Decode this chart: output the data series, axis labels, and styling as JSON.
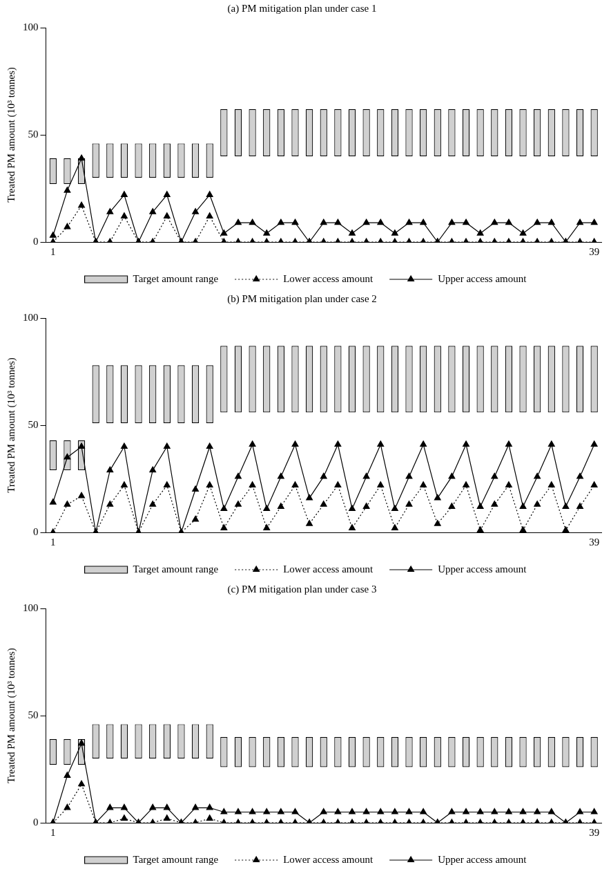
{
  "chart_data": [
    {
      "type": "bar",
      "title": "(a) PM mitigation plan under case 1",
      "ylabel": "Treated PM amount (10³ tonnes)",
      "categories": [
        "1",
        null,
        null,
        null,
        null,
        null,
        null,
        null,
        null,
        null,
        null,
        null,
        null,
        null,
        null,
        null,
        null,
        null,
        null,
        null,
        null,
        null,
        null,
        null,
        null,
        null,
        null,
        null,
        null,
        null,
        null,
        null,
        null,
        null,
        null,
        null,
        null,
        null,
        "39"
      ],
      "ylim": [
        0,
        100
      ],
      "yticks": [
        0,
        50,
        100
      ],
      "grid": false,
      "legend": "bottom",
      "series": [
        {
          "name": "Target amount range",
          "color": "#d0d0d0",
          "base": [
            27,
            27,
            27,
            30,
            30,
            30,
            30,
            30,
            30,
            30,
            30,
            30,
            40,
            40,
            40,
            40,
            40,
            40,
            40,
            40,
            40,
            40,
            40,
            40,
            40,
            40,
            40,
            40,
            40,
            40,
            40,
            40,
            40,
            40,
            40,
            40,
            40,
            40,
            40
          ],
          "values": [
            12,
            12,
            12,
            16,
            16,
            16,
            16,
            16,
            16,
            16,
            16,
            16,
            22,
            22,
            22,
            22,
            22,
            22,
            22,
            22,
            22,
            22,
            22,
            22,
            22,
            22,
            22,
            22,
            22,
            22,
            22,
            22,
            22,
            22,
            22,
            22,
            22,
            22,
            22
          ]
        },
        {
          "name": "Lower access amount",
          "type": "line",
          "color": "#000000",
          "marker": "triangle",
          "line_style": "dotted",
          "values": [
            0,
            7,
            17,
            0,
            0,
            12,
            0,
            0,
            12,
            0,
            0,
            12,
            0,
            0,
            0,
            0,
            0,
            0,
            0,
            0,
            0,
            0,
            0,
            0,
            0,
            0,
            0,
            0,
            0,
            0,
            0,
            0,
            0,
            0,
            0,
            0,
            0,
            0,
            0
          ]
        },
        {
          "name": "Upper access amount",
          "type": "line",
          "color": "#000000",
          "marker": "triangle",
          "line_style": "solid",
          "values": [
            3,
            24,
            39,
            0,
            14,
            22,
            0,
            14,
            22,
            0,
            14,
            22,
            4,
            9,
            9,
            4,
            9,
            9,
            0,
            9,
            9,
            4,
            9,
            9,
            4,
            9,
            9,
            0,
            9,
            9,
            4,
            9,
            9,
            4,
            9,
            9,
            0,
            9,
            9
          ]
        }
      ]
    },
    {
      "type": "bar",
      "title": "(b) PM mitigation plan under case 2",
      "ylabel": "Treated PM amount (10³ tonnes)",
      "categories": [
        "1",
        null,
        null,
        null,
        null,
        null,
        null,
        null,
        null,
        null,
        null,
        null,
        null,
        null,
        null,
        null,
        null,
        null,
        null,
        null,
        null,
        null,
        null,
        null,
        null,
        null,
        null,
        null,
        null,
        null,
        null,
        null,
        null,
        null,
        null,
        null,
        null,
        null,
        "39"
      ],
      "ylim": [
        0,
        100
      ],
      "yticks": [
        0,
        50,
        100
      ],
      "grid": false,
      "legend": "bottom",
      "series": [
        {
          "name": "Target amount range",
          "color": "#d0d0d0",
          "base": [
            29,
            29,
            29,
            51,
            51,
            51,
            51,
            51,
            51,
            51,
            51,
            51,
            56,
            56,
            56,
            56,
            56,
            56,
            56,
            56,
            56,
            56,
            56,
            56,
            56,
            56,
            56,
            56,
            56,
            56,
            56,
            56,
            56,
            56,
            56,
            56,
            56,
            56,
            56
          ],
          "values": [
            14,
            14,
            14,
            27,
            27,
            27,
            27,
            27,
            27,
            27,
            27,
            27,
            31,
            31,
            31,
            31,
            31,
            31,
            31,
            31,
            31,
            31,
            31,
            31,
            31,
            31,
            31,
            31,
            31,
            31,
            31,
            31,
            31,
            31,
            31,
            31,
            31,
            31,
            31
          ]
        },
        {
          "name": "Lower access amount",
          "type": "line",
          "color": "#000000",
          "marker": "triangle",
          "line_style": "dotted",
          "values": [
            0,
            13,
            17,
            0,
            13,
            22,
            0,
            13,
            22,
            0,
            6,
            22,
            2,
            13,
            22,
            2,
            12,
            22,
            4,
            13,
            22,
            2,
            12,
            22,
            2,
            13,
            22,
            4,
            12,
            22,
            1,
            13,
            22,
            1,
            13,
            22,
            1,
            12,
            22
          ]
        },
        {
          "name": "Upper access amount",
          "type": "line",
          "color": "#000000",
          "marker": "triangle",
          "line_style": "solid",
          "values": [
            14,
            35,
            40,
            0,
            29,
            40,
            0,
            29,
            40,
            0,
            20,
            40,
            11,
            26,
            41,
            11,
            26,
            41,
            16,
            26,
            41,
            11,
            26,
            41,
            11,
            26,
            41,
            16,
            26,
            41,
            12,
            26,
            41,
            12,
            26,
            41,
            12,
            26,
            41
          ]
        }
      ]
    },
    {
      "type": "bar",
      "title": "(c) PM mitigation plan under case 3",
      "ylabel": "Treated PM amount (10³ tonnes)",
      "categories": [
        "1",
        null,
        null,
        null,
        null,
        null,
        null,
        null,
        null,
        null,
        null,
        null,
        null,
        null,
        null,
        null,
        null,
        null,
        null,
        null,
        null,
        null,
        null,
        null,
        null,
        null,
        null,
        null,
        null,
        null,
        null,
        null,
        null,
        null,
        null,
        null,
        null,
        null,
        "39"
      ],
      "ylim": [
        0,
        100
      ],
      "yticks": [
        0,
        50,
        100
      ],
      "grid": false,
      "legend": "bottom",
      "series": [
        {
          "name": "Target amount range",
          "color": "#d0d0d0",
          "base": [
            27,
            27,
            27,
            30,
            30,
            30,
            30,
            30,
            30,
            30,
            30,
            30,
            26,
            26,
            26,
            26,
            26,
            26,
            26,
            26,
            26,
            26,
            26,
            26,
            26,
            26,
            26,
            26,
            26,
            26,
            26,
            26,
            26,
            26,
            26,
            26,
            26,
            26,
            26
          ],
          "values": [
            12,
            12,
            12,
            16,
            16,
            16,
            16,
            16,
            16,
            16,
            16,
            16,
            14,
            14,
            14,
            14,
            14,
            14,
            14,
            14,
            14,
            14,
            14,
            14,
            14,
            14,
            14,
            14,
            14,
            14,
            14,
            14,
            14,
            14,
            14,
            14,
            14,
            14,
            14
          ]
        },
        {
          "name": "Lower access amount",
          "type": "line",
          "color": "#000000",
          "marker": "triangle",
          "line_style": "dotted",
          "values": [
            0,
            7,
            18,
            0,
            0,
            2,
            0,
            0,
            2,
            0,
            0,
            2,
            0,
            0,
            0,
            0,
            0,
            0,
            0,
            0,
            0,
            0,
            0,
            0,
            0,
            0,
            0,
            0,
            0,
            0,
            0,
            0,
            0,
            0,
            0,
            0,
            0,
            0,
            0
          ]
        },
        {
          "name": "Upper access amount",
          "type": "line",
          "color": "#000000",
          "marker": "triangle",
          "line_style": "solid",
          "values": [
            0,
            22,
            37,
            0,
            7,
            7,
            0,
            7,
            7,
            0,
            7,
            7,
            5,
            5,
            5,
            5,
            5,
            5,
            0,
            5,
            5,
            5,
            5,
            5,
            5,
            5,
            5,
            0,
            5,
            5,
            5,
            5,
            5,
            5,
            5,
            5,
            0,
            5,
            5
          ]
        }
      ]
    }
  ]
}
